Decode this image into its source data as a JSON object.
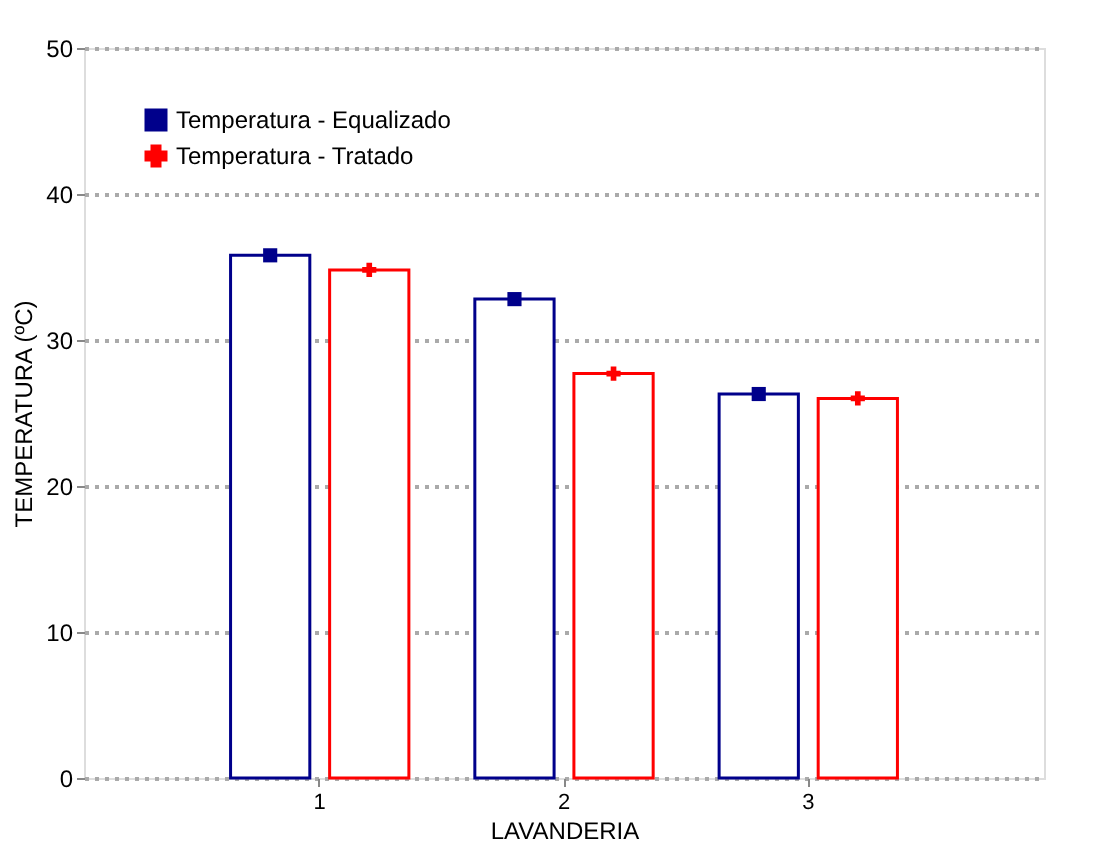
{
  "chart_data": {
    "type": "bar",
    "xlabel": "LAVANDERIA",
    "ylabel": "TEMPERATURA (ºC)",
    "categories": [
      "1",
      "2",
      "3"
    ],
    "series": [
      {
        "name": "Temperatura - Equalizado",
        "color": "#00008b",
        "values": [
          35.8,
          32.8,
          26.3
        ]
      },
      {
        "name": "Temperatura - Tratado",
        "color": "#ff0000",
        "values": [
          34.8,
          27.7,
          26.0
        ]
      },
      {
        "type": "scatter",
        "x": [
          "1",
          "2",
          "3"
        ],
        "color": "#00008b",
        "marker": "square",
        "values": [
          35.8,
          32.8,
          26.3
        ]
      },
      {
        "type": "scatter",
        "x": [
          "1",
          "2",
          "3"
        ],
        "color": "#ff0000",
        "marker": "cross",
        "values": [
          34.8,
          27.7,
          26.0
        ]
      }
    ],
    "ylim": [
      0,
      50
    ],
    "yticks": [
      0,
      10,
      20,
      30,
      40,
      50
    ],
    "grid": "y",
    "legend": "top left"
  }
}
